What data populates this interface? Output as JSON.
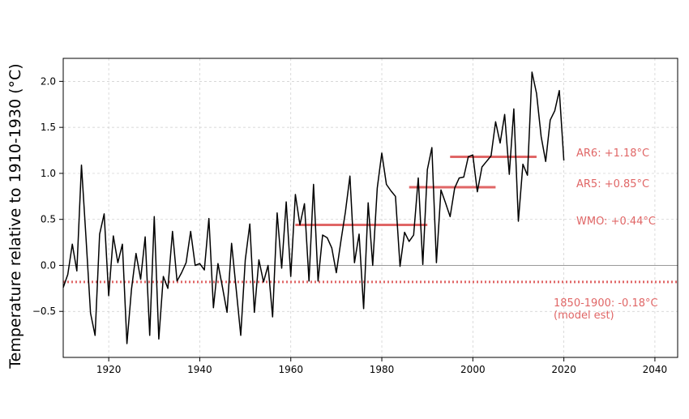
{
  "chart_data": {
    "type": "line",
    "ylabel": "Temperature relative to 1910-1930 (°C)",
    "xlim": [
      1910,
      2045
    ],
    "ylim": [
      -1.0,
      2.25
    ],
    "xticks": [
      1920,
      1940,
      1960,
      1980,
      2000,
      2020,
      2040
    ],
    "yticks": [
      -0.5,
      0.0,
      0.5,
      1.0,
      1.5,
      2.0
    ],
    "ytick_labels": [
      "−0.5",
      "0.0",
      "0.5",
      "1.0",
      "1.5",
      "2.0"
    ],
    "grid": true,
    "line_color": "#000000",
    "accent_color": "#e06666",
    "series": [
      {
        "x": [
          1910,
          1911,
          1912,
          1913,
          1914,
          1915,
          1916,
          1917,
          1918,
          1919,
          1920,
          1921,
          1922,
          1923,
          1924,
          1925,
          1926,
          1927,
          1928,
          1929,
          1930,
          1931,
          1932,
          1933,
          1934,
          1935,
          1936,
          1937,
          1938,
          1939,
          1940,
          1941,
          1942,
          1943,
          1944,
          1945,
          1946,
          1947,
          1948,
          1949,
          1950,
          1951,
          1952,
          1953,
          1954,
          1955,
          1956,
          1957,
          1958,
          1959,
          1960,
          1961,
          1962,
          1963,
          1964,
          1965,
          1966,
          1967,
          1968,
          1969,
          1970,
          1971,
          1972,
          1973,
          1974,
          1975,
          1976,
          1977,
          1978,
          1979,
          1980,
          1981,
          1982,
          1983,
          1984,
          1985,
          1986,
          1987,
          1988,
          1989,
          1990,
          1991,
          1992,
          1993,
          1994,
          1995,
          1996,
          1997,
          1998,
          1999,
          2000,
          2001,
          2002,
          2003,
          2004,
          2005,
          2006,
          2007,
          2008,
          2009,
          2010,
          2011,
          2012,
          2013,
          2014,
          2015,
          2016,
          2017,
          2018,
          2019,
          2020
        ],
        "y": [
          -0.24,
          -0.1,
          0.23,
          -0.06,
          1.09,
          0.3,
          -0.52,
          -0.76,
          0.34,
          0.56,
          -0.33,
          0.32,
          0.03,
          0.23,
          -0.85,
          -0.26,
          0.13,
          -0.15,
          0.31,
          -0.76,
          0.53,
          -0.8,
          -0.12,
          -0.25,
          0.37,
          -0.17,
          -0.08,
          0.03,
          0.37,
          0.0,
          0.02,
          -0.05,
          0.51,
          -0.46,
          0.02,
          -0.24,
          -0.51,
          0.24,
          -0.26,
          -0.76,
          0.06,
          0.45,
          -0.51,
          0.06,
          -0.18,
          0.0,
          -0.56,
          0.57,
          -0.03,
          0.69,
          -0.12,
          0.77,
          0.44,
          0.67,
          -0.17,
          0.88,
          -0.17,
          0.33,
          0.3,
          0.19,
          -0.08,
          0.26,
          0.58,
          0.97,
          0.03,
          0.34,
          -0.47,
          0.68,
          0.0,
          0.84,
          1.22,
          0.88,
          0.81,
          0.75,
          -0.01,
          0.36,
          0.26,
          0.33,
          0.95,
          0.01,
          1.04,
          1.28,
          0.03,
          0.82,
          0.68,
          0.53,
          0.84,
          0.95,
          0.96,
          1.18,
          1.2,
          0.8,
          1.07,
          1.13,
          1.19,
          1.56,
          1.33,
          1.64,
          0.99,
          1.7,
          0.48,
          1.1,
          0.98,
          2.1,
          1.87,
          1.4,
          1.13,
          1.58,
          1.68,
          1.9,
          1.14
        ]
      }
    ],
    "reference_lines": [
      {
        "label": "AR6: +1.18°C",
        "value": 1.18,
        "x_start": 1995,
        "x_end": 2014
      },
      {
        "label": "AR5: +0.85°C",
        "value": 0.85,
        "x_start": 1986,
        "x_end": 2005
      },
      {
        "label": "WMO: +0.44°C",
        "value": 0.44,
        "x_start": 1961,
        "x_end": 1990
      }
    ],
    "baseline": {
      "label_line1": "1850-1900: -0.18°C",
      "label_line2": "(model est)",
      "value": -0.18
    },
    "zero_line": 0.0
  }
}
